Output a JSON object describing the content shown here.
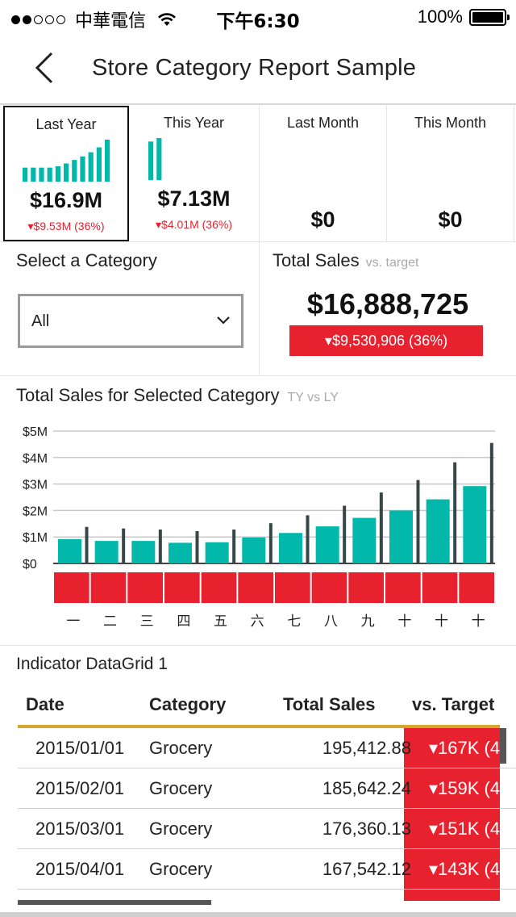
{
  "status_bar": {
    "carrier": "中華電信",
    "time": "下午6:30",
    "battery": "100%"
  },
  "nav": {
    "title": "Store Category Report Sample"
  },
  "kpis": [
    {
      "label": "Last Year",
      "value": "$16.9M",
      "delta": "$9.53M (36%)",
      "selected": true,
      "spark": [
        2,
        2,
        2,
        2,
        2.2,
        2.6,
        3.1,
        3.6,
        4.2,
        4.9,
        6
      ]
    },
    {
      "label": "This Year",
      "value": "$7.13M",
      "delta": "$4.01M (36%)",
      "selected": false,
      "spark": [
        5.5,
        6
      ]
    },
    {
      "label": "Last Month",
      "value": "$0",
      "delta": "",
      "selected": false,
      "spark": []
    },
    {
      "label": "This Month",
      "value": "$0",
      "delta": "",
      "selected": false,
      "spark": []
    }
  ],
  "category": {
    "title": "Select a Category",
    "selected": "All"
  },
  "total_sales": {
    "title": "Total Sales",
    "subtitle": "vs. target",
    "value": "$16,888,725",
    "delta": "$9,530,906 (36%)"
  },
  "chart": {
    "title": "Total Sales for Selected Category",
    "subtitle": "TY vs LY"
  },
  "chart_data": {
    "type": "bar",
    "categories": [
      "一",
      "二",
      "三",
      "四",
      "五",
      "六",
      "七",
      "八",
      "九",
      "十",
      "十",
      "十"
    ],
    "series": [
      {
        "values": [
          0.92,
          0.85,
          0.85,
          0.78,
          0.8,
          0.98,
          1.15,
          1.4,
          1.72,
          2.0,
          2.42,
          2.92
        ]
      },
      {
        "values": [
          1.38,
          1.32,
          1.28,
          1.22,
          1.28,
          1.52,
          1.82,
          2.18,
          2.68,
          3.15,
          3.82,
          4.55
        ]
      }
    ],
    "yticks": [
      "$5M",
      "$4M",
      "$3M",
      "$2M",
      "$1M",
      "$0"
    ],
    "ylim": [
      0,
      5
    ],
    "grid": true,
    "colors": {
      "ty": "#01b8aa",
      "ly": "#374649",
      "variance": "#e8212f",
      "grid": "#c8c8c8"
    }
  },
  "grid": {
    "title": "Indicator DataGrid 1",
    "columns": [
      "Date",
      "Category",
      "Total Sales",
      "vs. Target"
    ],
    "rows": [
      {
        "date": "2015/01/01",
        "category": "Grocery",
        "sales": "195,412.88",
        "target": "167K (4"
      },
      {
        "date": "2015/02/01",
        "category": "Grocery",
        "sales": "185,642.24",
        "target": "159K (4"
      },
      {
        "date": "2015/03/01",
        "category": "Grocery",
        "sales": "176,360.13",
        "target": "151K (4"
      },
      {
        "date": "2015/04/01",
        "category": "Grocery",
        "sales": "167,542.12",
        "target": "143K (4"
      }
    ]
  }
}
